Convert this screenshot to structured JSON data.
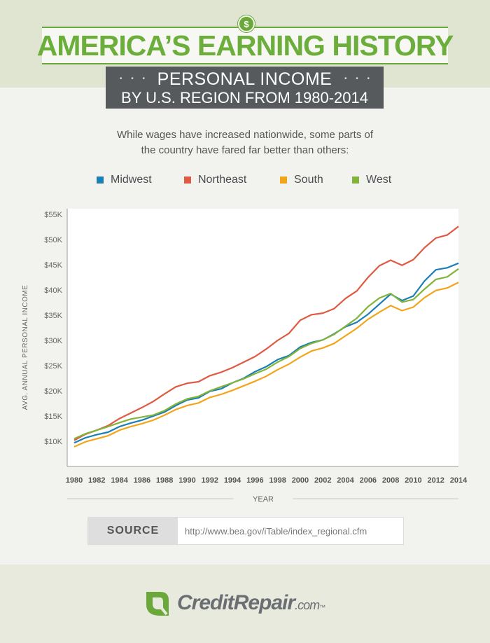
{
  "header": {
    "title": "AMERICA’S EARNING HISTORY",
    "coin_symbol": "$",
    "subtitle_line1": "PERSONAL INCOME",
    "subtitle_line2": "BY U.S. REGION FROM 1980-2014",
    "dots": "• • •",
    "accent_color": "#6aa83a"
  },
  "intro": {
    "line1": "While wages have increased nationwide, some parts of",
    "line2": "the country have fared far better than others:"
  },
  "chart_data": {
    "type": "line",
    "ylabel": "AVG. ANNUAL PERSONAL INCOME",
    "xlabel": "YEAR",
    "ylim": [
      5000,
      55000
    ],
    "xlim": [
      1980,
      2014
    ],
    "y_ticks": [
      10000,
      15000,
      20000,
      25000,
      30000,
      35000,
      40000,
      45000,
      50000,
      55000
    ],
    "y_tick_labels": [
      "$10K",
      "$15K",
      "$20K",
      "$25K",
      "$30K",
      "$35K",
      "$40K",
      "$45K",
      "$50K",
      "$55K"
    ],
    "x_ticks": [
      1980,
      1982,
      1984,
      1986,
      1988,
      1990,
      1992,
      1994,
      1996,
      1998,
      2000,
      2002,
      2004,
      2006,
      2008,
      2010,
      2012,
      2014
    ],
    "x_tick_labels": [
      "1980",
      "1982",
      "1984",
      "1986",
      "1988",
      "1990",
      "1992",
      "1994",
      "1996",
      "1998",
      "2000",
      "2002",
      "2004",
      "2006",
      "2008",
      "2010",
      "2012",
      "2014"
    ],
    "grid": false,
    "legend_position": "top",
    "x": [
      1980,
      1981,
      1982,
      1983,
      1984,
      1985,
      1986,
      1987,
      1988,
      1989,
      1990,
      1991,
      1992,
      1993,
      1994,
      1995,
      1996,
      1997,
      1998,
      1999,
      2000,
      2001,
      2002,
      2003,
      2004,
      2005,
      2006,
      2007,
      2008,
      2009,
      2010,
      2011,
      2012,
      2013,
      2014
    ],
    "series": [
      {
        "name": "Midwest",
        "color": "#1b7fb5",
        "values": [
          9700,
          10700,
          11300,
          11800,
          12900,
          13600,
          14200,
          15000,
          15800,
          17100,
          18200,
          18600,
          19900,
          20400,
          21600,
          22500,
          23800,
          24800,
          26200,
          27000,
          28700,
          29600,
          30100,
          31300,
          32700,
          33600,
          35200,
          37200,
          39200,
          37900,
          38800,
          41800,
          44000,
          44400,
          45300
        ]
      },
      {
        "name": "Northeast",
        "color": "#e05a43",
        "values": [
          10200,
          11400,
          12200,
          13100,
          14500,
          15600,
          16700,
          17900,
          19400,
          20800,
          21500,
          21800,
          23000,
          23700,
          24600,
          25700,
          26800,
          28300,
          30000,
          31400,
          34000,
          35100,
          35400,
          36300,
          38300,
          39800,
          42500,
          44800,
          45900,
          44900,
          46000,
          48400,
          50300,
          50900,
          52600
        ]
      },
      {
        "name": "South",
        "color": "#f2a51a",
        "values": [
          8900,
          9900,
          10500,
          11100,
          12200,
          12900,
          13500,
          14200,
          15200,
          16300,
          17100,
          17600,
          18700,
          19300,
          20100,
          21000,
          21900,
          22900,
          24200,
          25300,
          26700,
          27900,
          28500,
          29400,
          30900,
          32400,
          34200,
          35600,
          36900,
          35900,
          36600,
          38500,
          39900,
          40400,
          41500
        ]
      },
      {
        "name": "West",
        "color": "#83b43a",
        "values": [
          10500,
          11500,
          12200,
          12900,
          13700,
          14400,
          14800,
          15200,
          16100,
          17400,
          18400,
          18900,
          20000,
          20800,
          21600,
          22400,
          23400,
          24300,
          25700,
          26800,
          28400,
          29400,
          30100,
          31200,
          32800,
          34400,
          36700,
          38400,
          39300,
          37600,
          38100,
          40200,
          42100,
          42600,
          44200
        ]
      }
    ]
  },
  "source": {
    "label": "SOURCE",
    "url": "http://www.bea.gov/iTable/index_regional.cfm"
  },
  "footer": {
    "logo_part1": "Credit",
    "logo_part2": "Repair",
    "logo_part3": ".com",
    "logo_tm": "™",
    "logo_color": "#6aa83a"
  }
}
